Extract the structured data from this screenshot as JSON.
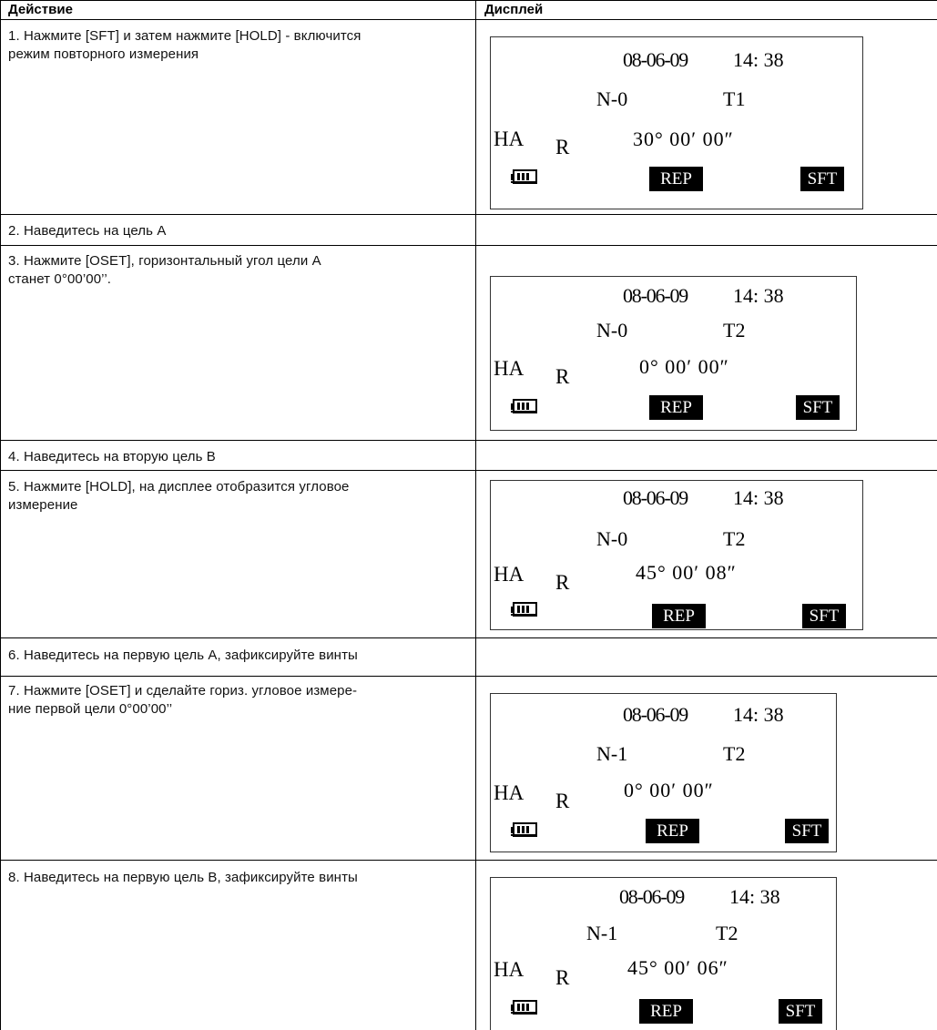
{
  "table": {
    "headers": {
      "action": "Действие",
      "display": "Дисплей"
    },
    "rows": [
      {
        "action_lines": [
          "1. Нажмите [SFT] и затем нажмите [HOLD] - включится",
          "режим повторного измерения"
        ],
        "display": {
          "date": "08-06-09",
          "time": "14: 38",
          "mode": "N-0",
          "target": "T1",
          "ha_label": "HA",
          "r_label": "R",
          "angle": "30° 00′ 00″",
          "soft_left": "REP",
          "soft_right": "SFT",
          "battery_icon": "battery-icon"
        }
      },
      {
        "action_lines": [
          "2. Наведитесь на цель А"
        ]
      },
      {
        "action_lines": [
          "3. Нажмите [OSET], горизонтальный угол цели А",
          "станет 0°00’00’’."
        ],
        "display": {
          "date": "08-06-09",
          "time": "14: 38",
          "mode": "N-0",
          "target": "T2",
          "ha_label": "HA",
          "r_label": "R",
          "angle": "0° 00′ 00″",
          "soft_left": "REP",
          "soft_right": "SFT",
          "battery_icon": "battery-icon"
        }
      },
      {
        "action_lines": [
          "4. Наведитесь на вторую цель В"
        ]
      },
      {
        "action_lines": [
          "5. Нажмите [HOLD], на дисплее отобразится угловое",
          "измерение"
        ],
        "display": {
          "date": "08-06-09",
          "time": "14: 38",
          "mode": "N-0",
          "target": "T2",
          "ha_label": "HA",
          "r_label": "R",
          "angle": "45° 00′ 08″",
          "soft_left": "REP",
          "soft_right": "SFT",
          "battery_icon": "battery-icon"
        }
      },
      {
        "action_lines": [
          "6. Наведитесь на первую цель А, зафиксируйте винты"
        ]
      },
      {
        "action_lines": [
          "7. Нажмите [OSET] и сделайте гориз. угловое измере-",
          "ние первой цели 0°00’00’’"
        ],
        "display": {
          "date": "08-06-09",
          "time": "14: 38",
          "mode": "N-1",
          "target": "T2",
          "ha_label": "HA",
          "r_label": "R",
          "angle": "0° 00′ 00″",
          "soft_left": "REP",
          "soft_right": "SFT",
          "battery_icon": "battery-icon"
        }
      },
      {
        "action_lines": [
          "8. Наведитесь на первую цель В, зафиксируйте винты"
        ],
        "display": {
          "date": "08-06-09",
          "time": "14: 38",
          "mode": "N-1",
          "target": "T2",
          "ha_label": "HA",
          "r_label": "R",
          "angle": "45° 00′ 06″",
          "soft_left": "REP",
          "soft_right": "SFT",
          "battery_icon": "battery-icon"
        }
      }
    ]
  }
}
